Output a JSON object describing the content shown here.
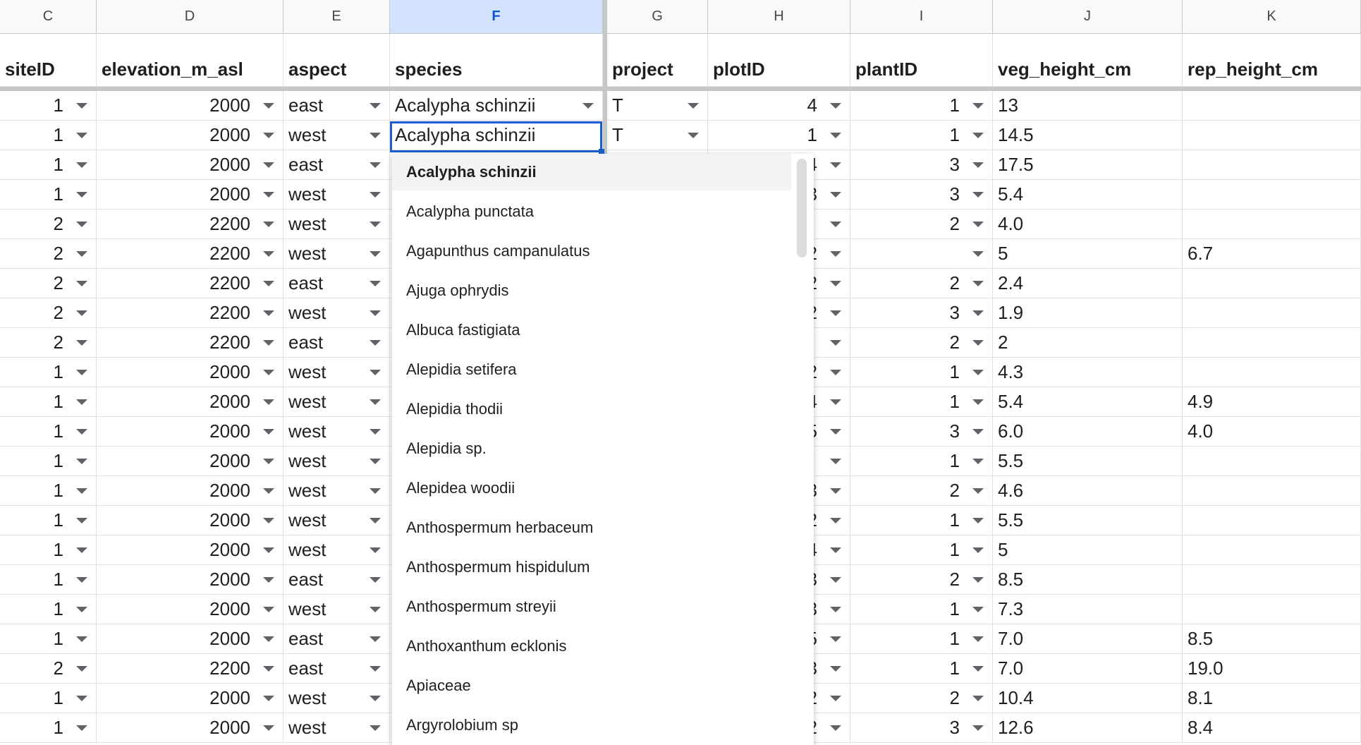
{
  "columns": [
    {
      "letter": "C",
      "header": "siteID",
      "align": "num",
      "dropdown": true
    },
    {
      "letter": "D",
      "header": "elevation_m_asl",
      "align": "num",
      "dropdown": true
    },
    {
      "letter": "E",
      "header": "aspect",
      "align": "left",
      "dropdown": true
    },
    {
      "letter": "F",
      "header": "species",
      "align": "left",
      "dropdown": true,
      "selected": true
    },
    {
      "letter": "G",
      "header": "project",
      "align": "left",
      "dropdown": true
    },
    {
      "letter": "H",
      "header": "plotID",
      "align": "num",
      "dropdown": true
    },
    {
      "letter": "I",
      "header": "plantID",
      "align": "num",
      "dropdown": true
    },
    {
      "letter": "J",
      "header": "veg_height_cm",
      "align": "left",
      "dropdown": false
    },
    {
      "letter": "K",
      "header": "rep_height_cm",
      "align": "left",
      "dropdown": false
    }
  ],
  "rows": [
    [
      "1",
      "2000",
      "east",
      "Acalypha schinzii",
      "T",
      "4",
      "1",
      "13",
      ""
    ],
    [
      "1",
      "2000",
      "west",
      "Acalypha schinzii",
      "T",
      "1",
      "1",
      "14.5",
      ""
    ],
    [
      "1",
      "2000",
      "east",
      "",
      "",
      "4",
      "3",
      "17.5",
      ""
    ],
    [
      "1",
      "2000",
      "west",
      "",
      "",
      "3",
      "3",
      "5.4",
      ""
    ],
    [
      "2",
      "2200",
      "west",
      "",
      "",
      "",
      "2",
      "4.0",
      ""
    ],
    [
      "2",
      "2200",
      "west",
      "",
      "",
      "2",
      "",
      "5",
      "6.7"
    ],
    [
      "2",
      "2200",
      "east",
      "",
      "",
      "2",
      "2",
      "2.4",
      ""
    ],
    [
      "2",
      "2200",
      "west",
      "",
      "",
      "2",
      "3",
      "1.9",
      ""
    ],
    [
      "2",
      "2200",
      "east",
      "",
      "",
      "",
      "2",
      "2",
      ""
    ],
    [
      "1",
      "2000",
      "west",
      "",
      "",
      "2",
      "1",
      "4.3",
      ""
    ],
    [
      "1",
      "2000",
      "west",
      "",
      "",
      "4",
      "1",
      "5.4",
      "4.9"
    ],
    [
      "1",
      "2000",
      "west",
      "",
      "",
      "5",
      "3",
      "6.0",
      "4.0"
    ],
    [
      "1",
      "2000",
      "west",
      "",
      "",
      "",
      "1",
      "5.5",
      ""
    ],
    [
      "1",
      "2000",
      "west",
      "",
      "",
      "3",
      "2",
      "4.6",
      ""
    ],
    [
      "1",
      "2000",
      "west",
      "",
      "",
      "2",
      "1",
      "5.5",
      ""
    ],
    [
      "1",
      "2000",
      "west",
      "",
      "",
      "4",
      "1",
      "5",
      ""
    ],
    [
      "1",
      "2000",
      "east",
      "",
      "",
      "3",
      "2",
      "8.5",
      ""
    ],
    [
      "1",
      "2000",
      "west",
      "",
      "",
      "3",
      "1",
      "7.3",
      ""
    ],
    [
      "1",
      "2000",
      "east",
      "",
      "",
      "5",
      "1",
      "7.0",
      "8.5"
    ],
    [
      "2",
      "2200",
      "east",
      "",
      "",
      "3",
      "1",
      "7.0",
      "19.0"
    ],
    [
      "1",
      "2000",
      "west",
      "",
      "",
      "2",
      "2",
      "10.4",
      "8.1"
    ],
    [
      "1",
      "2000",
      "west",
      "",
      "",
      "2",
      "3",
      "12.6",
      "8.4"
    ]
  ],
  "dropdown_options": [
    "Acalypha schinzii",
    "Acalypha punctata",
    "Agapunthus campanulatus",
    "Ajuga ophrydis",
    "Albuca fastigiata",
    "Alepidia setifera",
    "Alepidia thodii",
    "Alepidia sp.",
    "Alepidea woodii",
    "Anthospermum herbaceum",
    "Anthospermum hispidulum",
    "Anthospermum streyii",
    "Anthoxanthum ecklonis",
    "Apiaceae",
    "Argyrolobium sp"
  ],
  "dropdown_highlighted": "Acalypha schinzii",
  "active_cell_value": "Acalypha schinzii",
  "colors": {
    "selection": "#1a5fd0",
    "selected_header": "#d3e3fd",
    "highlight": "#f1f3f4"
  }
}
